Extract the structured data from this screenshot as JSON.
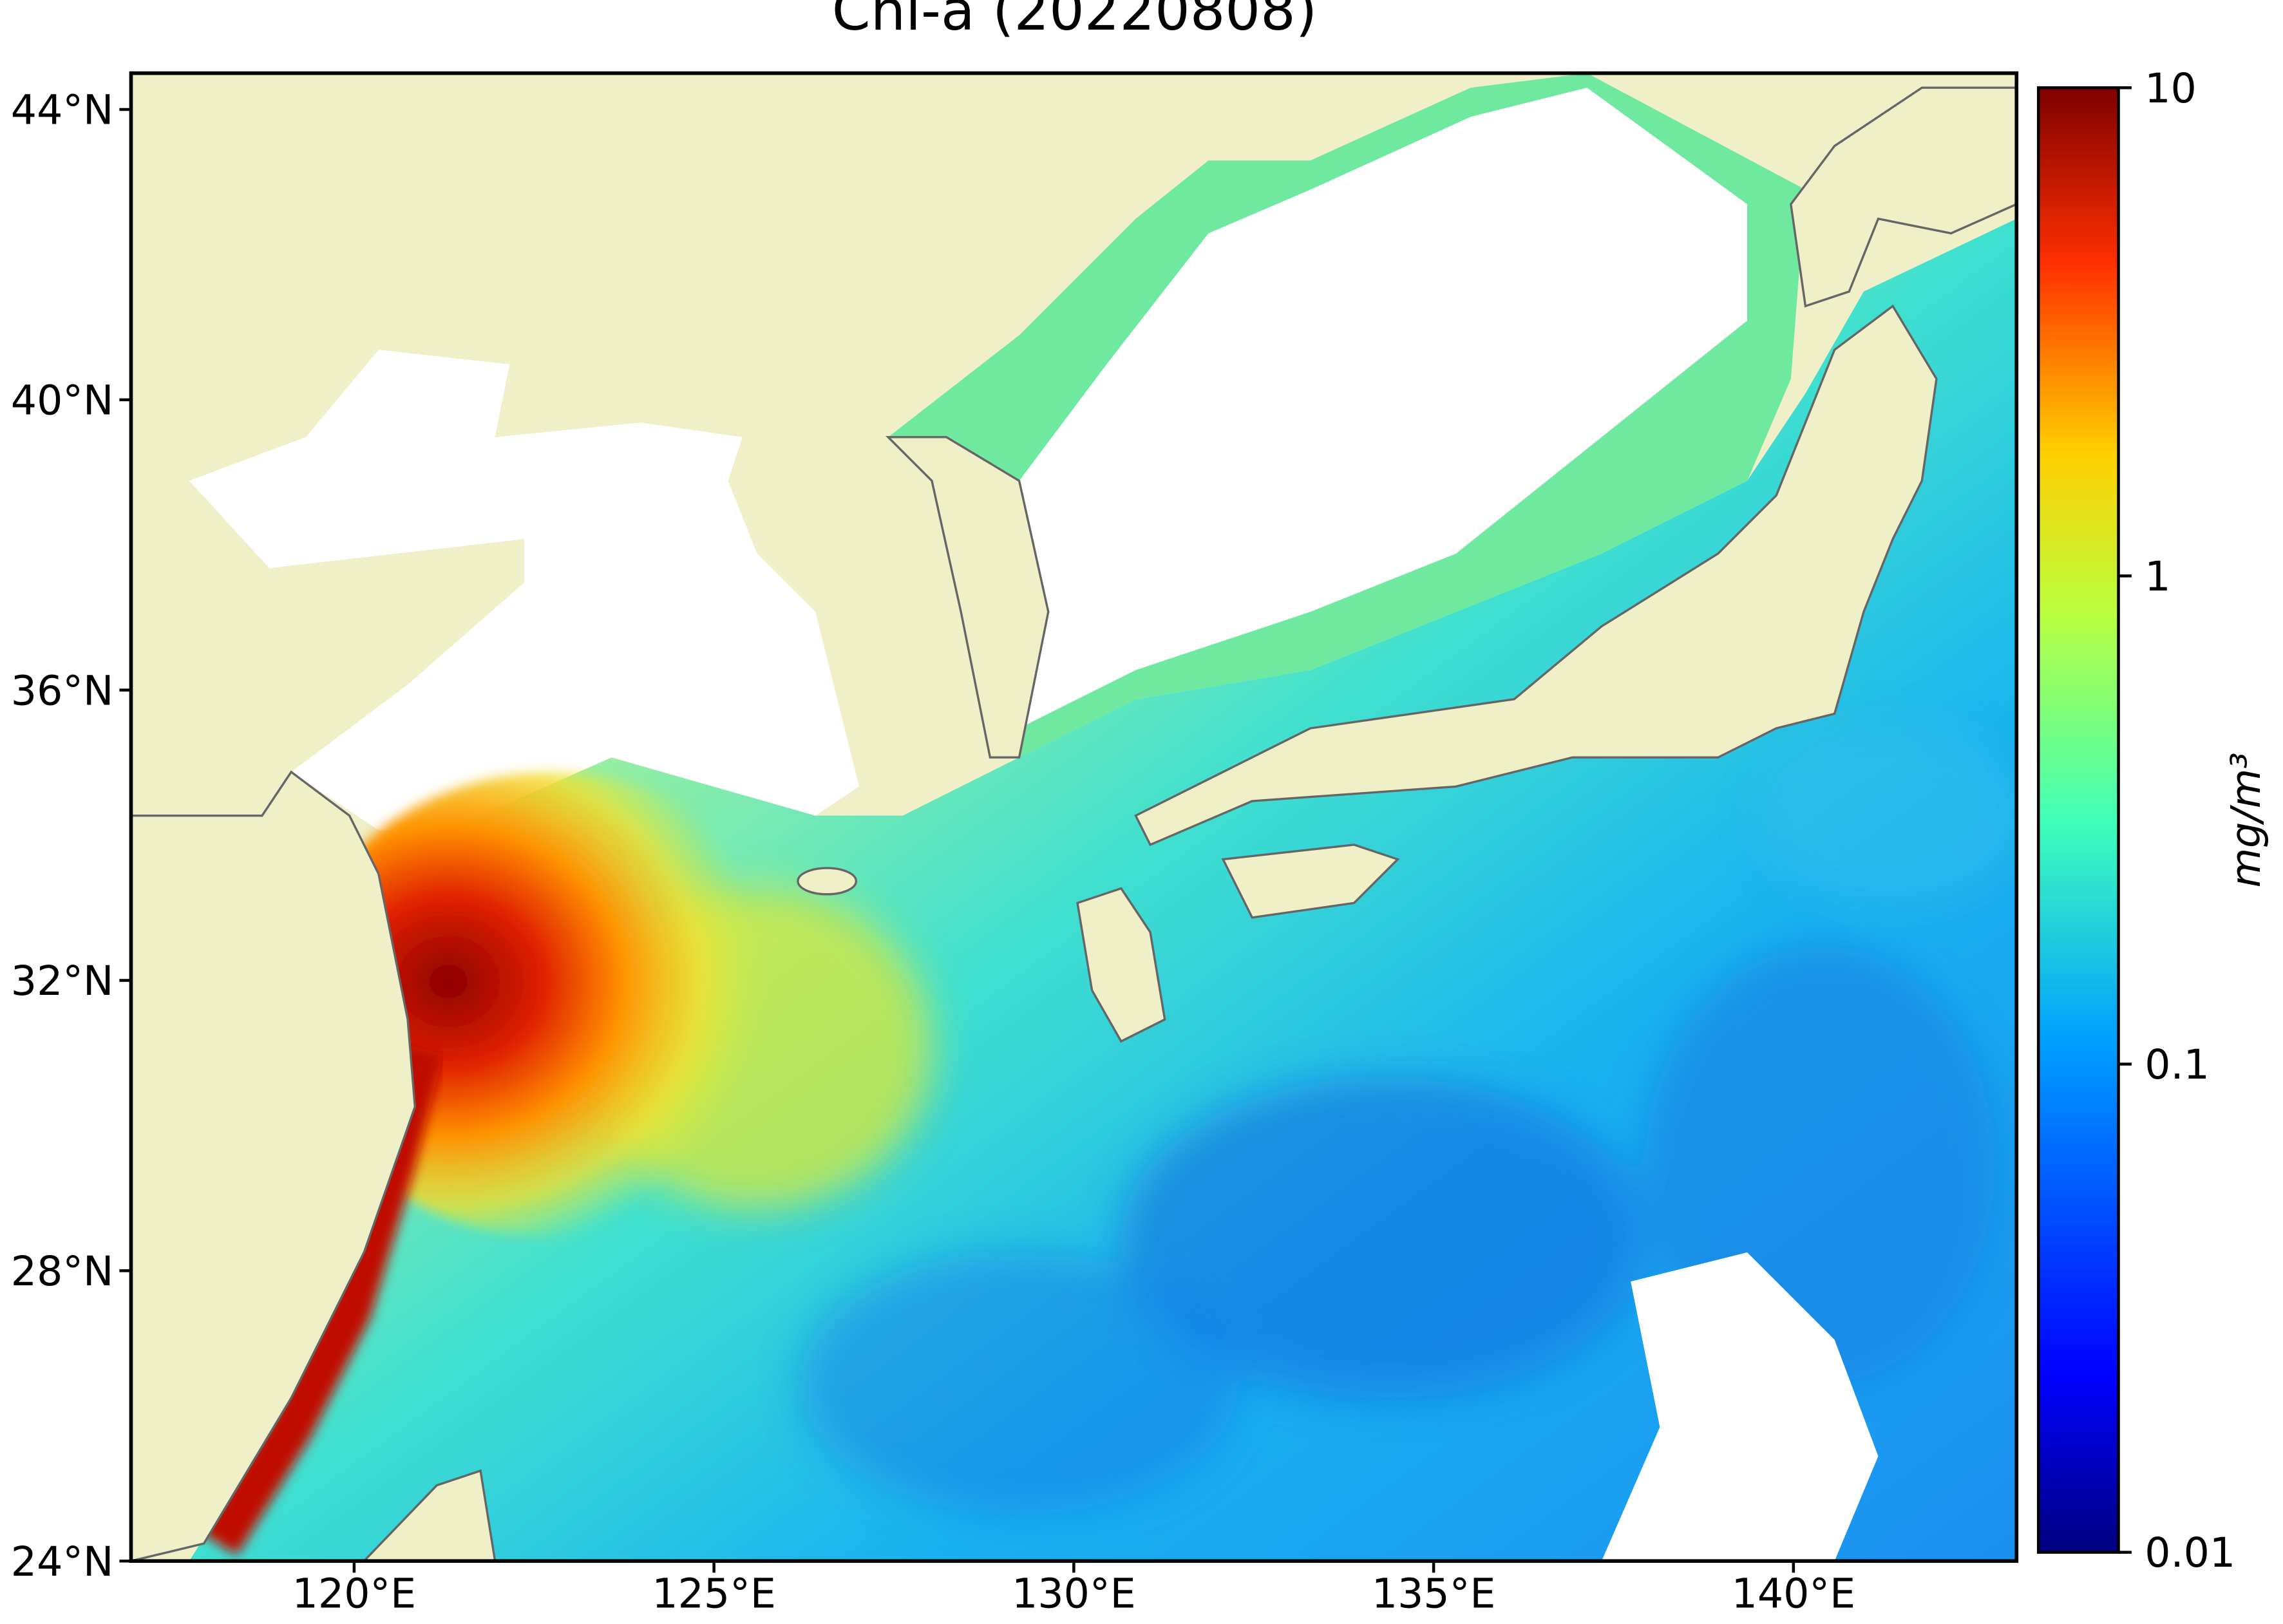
{
  "map": {
    "title": "Chl-a (20220808)",
    "xlim": [
      116.9,
      143.1
    ],
    "ylim": [
      24,
      44.5
    ],
    "xticks": [
      {
        "value": 120,
        "label": "120°E"
      },
      {
        "value": 125,
        "label": "125°E"
      },
      {
        "value": 130,
        "label": "130°E"
      },
      {
        "value": 135,
        "label": "135°E"
      },
      {
        "value": 140,
        "label": "140°E"
      }
    ],
    "yticks": [
      {
        "value": 24,
        "label": "24°N"
      },
      {
        "value": 28,
        "label": "28°N"
      },
      {
        "value": 32,
        "label": "32°N"
      },
      {
        "value": 36,
        "label": "36°N"
      },
      {
        "value": 40,
        "label": "40°N"
      },
      {
        "value": 44,
        "label": "44°N"
      }
    ]
  },
  "colorbar": {
    "label": "mg/m³",
    "scale": "log",
    "lim": [
      0.01,
      10
    ],
    "ticks": [
      0.01,
      0.1,
      1,
      10
    ]
  }
}
